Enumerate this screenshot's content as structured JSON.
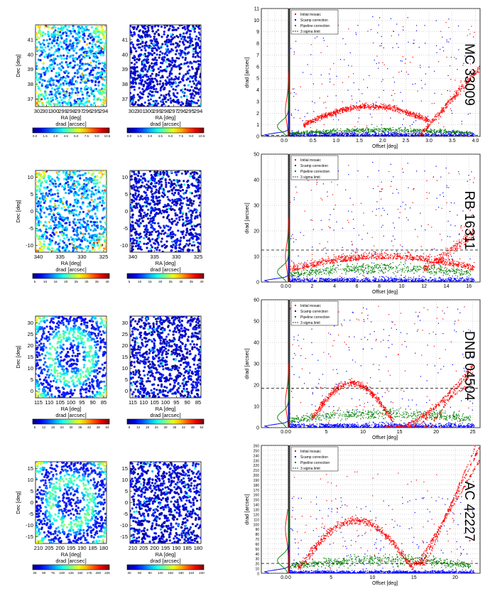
{
  "figure": {
    "panels": [
      {
        "row_label": "MC 33009",
        "map": {
          "xlabel": "RA [deg]",
          "ylabel": "Dec [deg]",
          "xticks": [
            "302",
            "301",
            "300",
            "299",
            "298",
            "297",
            "296",
            "295",
            "294"
          ],
          "yticks": [
            "37",
            "38",
            "39",
            "40",
            "41"
          ],
          "yrange": [
            36.5,
            42
          ],
          "colorbar_label": "drad [arcsec]",
          "cbar_ticks_left": [
            "0.0",
            "1.5",
            "3.0",
            "4.5",
            "6.0",
            "7.5",
            "9.0",
            "10.5"
          ],
          "cbar_ticks_right": [
            "0.0",
            "1.5",
            "3.0",
            "4.5",
            "6.0",
            "7.5",
            "9.0",
            "10.5"
          ],
          "pattern": "speckle"
        },
        "scatter": {
          "xlabel": "Offset [deg]",
          "ylabel": "drad [arcsec]",
          "xticks": [
            "0.5",
            "1.0",
            "1.5",
            "2.0",
            "2.5",
            "3.0",
            "3.5",
            "4.0"
          ],
          "xmax": 4.1,
          "ymax": 11,
          "yticks": [
            "0",
            "1",
            "2",
            "3",
            "4",
            "5",
            "6",
            "7",
            "8",
            "9",
            "10",
            "11"
          ],
          "limit": 0.1,
          "legend": [
            "Initial mosaic",
            "Scamp correction",
            "Pipeline correction",
            "3 sigma limit"
          ],
          "pattern": "arc"
        }
      },
      {
        "row_label": "RB 16311",
        "map": {
          "xlabel": "RA [deg]",
          "ylabel": "Dec [deg]",
          "xticks": [
            "340",
            "335",
            "330",
            "325"
          ],
          "yticks": [
            "-10",
            "-5",
            "0",
            "5",
            "10"
          ],
          "yrange": [
            -12,
            12
          ],
          "colorbar_label": "drad [arcsec]",
          "cbar_ticks_left": [
            "5",
            "10",
            "15",
            "20",
            "25",
            "30",
            "35",
            "40"
          ],
          "cbar_ticks_right": [
            "5",
            "10",
            "15",
            "20",
            "25",
            "30",
            "35",
            "40"
          ],
          "pattern": "speckle"
        },
        "scatter": {
          "xlabel": "Offset [deg]",
          "ylabel": "drad [arcsec]",
          "xticks": [
            "0",
            "2",
            "4",
            "6",
            "8",
            "10",
            "12",
            "14",
            "16"
          ],
          "xmax": 17,
          "ymax": 50,
          "yticks": [
            "0",
            "10",
            "20",
            "30",
            "40",
            "50"
          ],
          "limit": 12.5,
          "legend": [
            "Initial mosaic",
            "Scamp correction",
            "Pipeline correction",
            "3 sigma limit"
          ],
          "pattern": "hump"
        }
      },
      {
        "row_label": "DNB 04504",
        "map": {
          "xlabel": "RA [deg]",
          "ylabel": "Dec [deg]",
          "xticks": [
            "115",
            "110",
            "105",
            "100",
            "95",
            "90",
            "85"
          ],
          "yticks": [
            "0",
            "5",
            "10",
            "15",
            "20",
            "25",
            "30"
          ],
          "yrange": [
            -3,
            33
          ],
          "colorbar_label": "drad [arcsec]",
          "cbar_ticks_left": [
            "6",
            "12",
            "18",
            "24",
            "30",
            "36",
            "42",
            "48",
            "54"
          ],
          "cbar_ticks_right": [
            "6",
            "12",
            "18",
            "24",
            "30",
            "36",
            "42",
            "48",
            "54"
          ],
          "pattern": "ring"
        },
        "scatter": {
          "xlabel": "Offset [deg]",
          "ylabel": "drad [arcsec]",
          "xticks": [
            "0",
            "5",
            "10",
            "15",
            "20",
            "25"
          ],
          "xmax": 26,
          "ymax": 60,
          "yticks": [
            "0",
            "10",
            "20",
            "30",
            "40",
            "50",
            "60"
          ],
          "limit": 18.5,
          "legend": [
            "Initial mosaic",
            "Scamp correction",
            "Pipeline correction",
            "3 sigma limit"
          ],
          "pattern": "fan"
        }
      },
      {
        "row_label": "AC 42227",
        "map": {
          "xlabel": "RA [deg]",
          "ylabel": "Dec [deg]",
          "xticks": [
            "210",
            "205",
            "200",
            "195",
            "190",
            "185",
            "180"
          ],
          "yticks": [
            "-15",
            "-10",
            "-5",
            "0",
            "5",
            "10",
            "15"
          ],
          "yrange": [
            -18,
            18
          ],
          "colorbar_label": "drad [arcsec]",
          "cbar_ticks_left": [
            "25",
            "50",
            "75",
            "100",
            "125",
            "150",
            "175",
            "200",
            "225"
          ],
          "cbar_ticks_right": [
            "30",
            "60",
            "90",
            "120",
            "150",
            "180",
            "210",
            "240"
          ],
          "pattern": "ring"
        },
        "scatter": {
          "xlabel": "Offset [deg]",
          "ylabel": "drad [arcsec]",
          "xticks": [
            "0",
            "5",
            "10",
            "15",
            "20"
          ],
          "xmax": 23,
          "ymax": 260,
          "yticks": [
            "0",
            "10",
            "20",
            "30",
            "40",
            "50",
            "60",
            "70",
            "80",
            "90",
            "100",
            "110",
            "120",
            "130",
            "140",
            "150",
            "160",
            "170",
            "180",
            "190",
            "200",
            "210",
            "220",
            "230",
            "240",
            "250",
            "260"
          ],
          "limit": 20,
          "legend": [
            "Initial mosaic",
            "Scamp correction",
            "Pipeline correction",
            "3 sigma limit"
          ],
          "pattern": "bigarc"
        }
      }
    ],
    "colors": {
      "initial": "#ff0000",
      "scamp": "#0000ff",
      "pipeline": "#008000",
      "axis": "#000000",
      "grid": "#999999",
      "limit": "#000000"
    }
  }
}
